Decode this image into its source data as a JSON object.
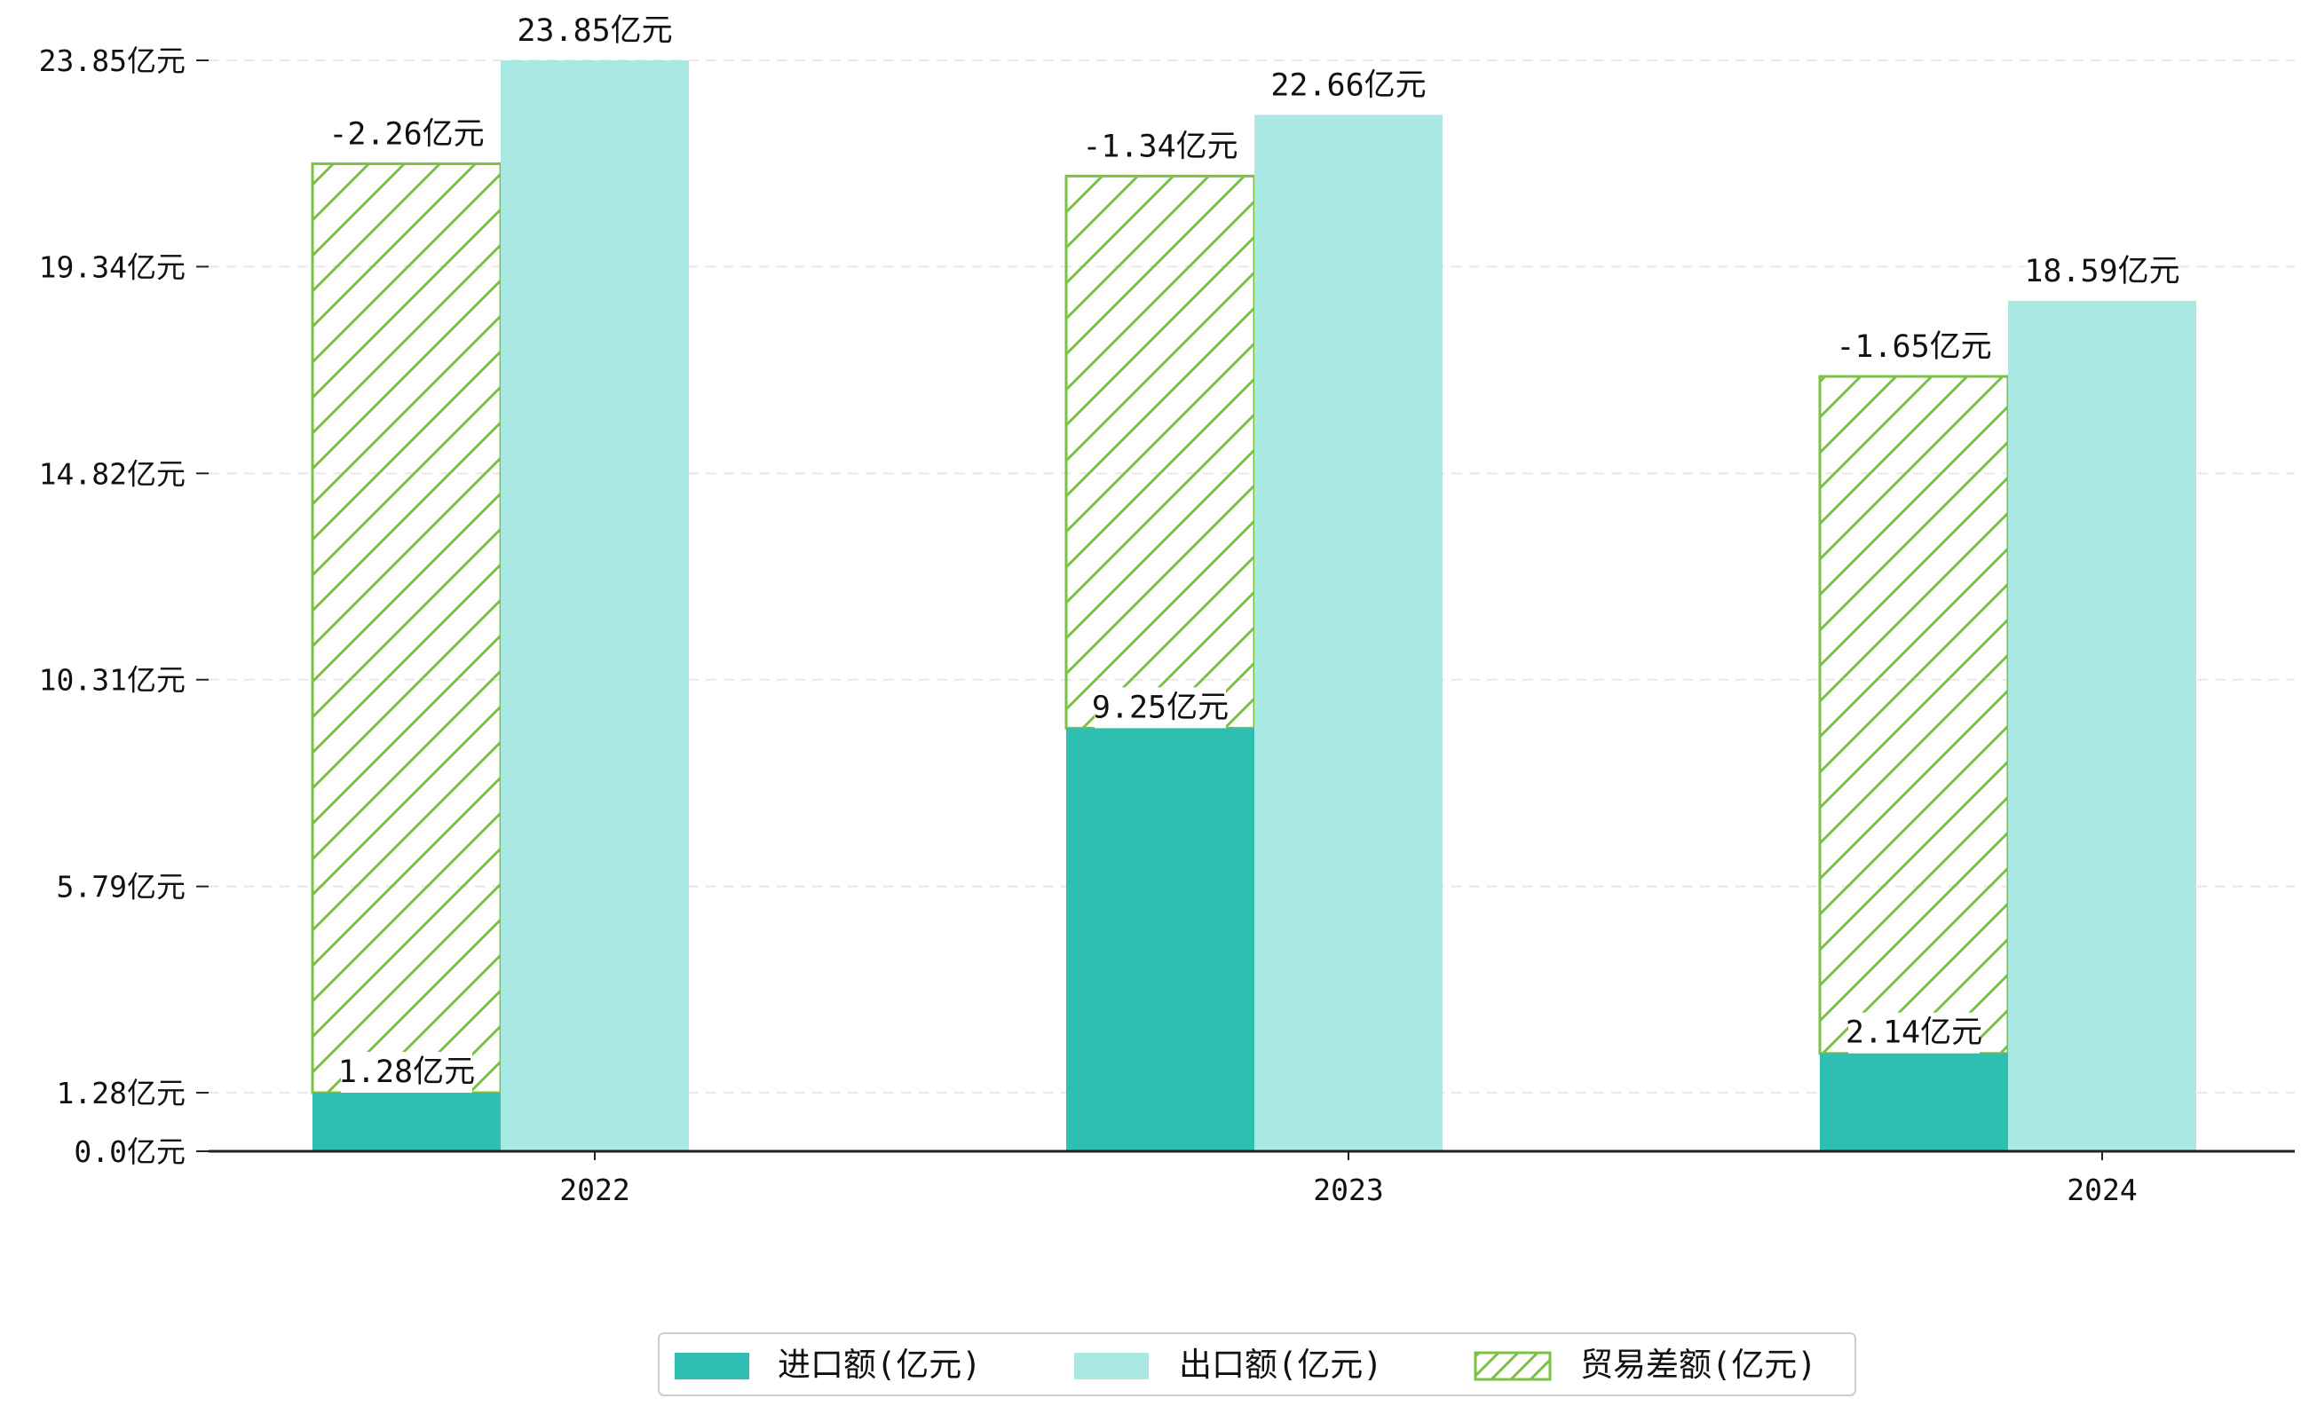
{
  "chart_data": {
    "type": "bar",
    "title": "",
    "xlabel": "",
    "ylabel": "",
    "unit": "亿元",
    "categories": [
      "2022",
      "2023",
      "2024"
    ],
    "series": [
      {
        "name": "进口额(亿元)",
        "values": [
          1.28,
          9.25,
          2.14
        ],
        "labels": [
          "1.28亿元",
          "9.25亿元",
          "2.14亿元"
        ],
        "color": "#2fbfb2",
        "style": "solid"
      },
      {
        "name": "出口额(亿元)",
        "values": [
          23.85,
          22.66,
          18.59
        ],
        "labels": [
          "23.85亿元",
          "22.66亿元",
          "18.59亿元"
        ],
        "color": "#aae8e3",
        "style": "solid"
      },
      {
        "name": "贸易差额(亿元)",
        "values": [
          -2.26,
          -1.34,
          -1.65
        ],
        "labels": [
          "-2.26亿元",
          "-1.34亿元",
          "-1.65亿元"
        ],
        "color": "#7cc242",
        "style": "hatched"
      }
    ],
    "yticks": [
      0.0,
      1.28,
      5.79,
      10.31,
      14.82,
      19.34,
      23.85
    ],
    "ytick_labels": [
      "0.0亿元",
      "1.28亿元",
      "5.79亿元",
      "10.31亿元",
      "14.82亿元",
      "19.34亿元",
      "23.85亿元"
    ],
    "ylim": [
      0,
      23.85
    ],
    "grid": true,
    "legend_position": "bottom-center"
  }
}
